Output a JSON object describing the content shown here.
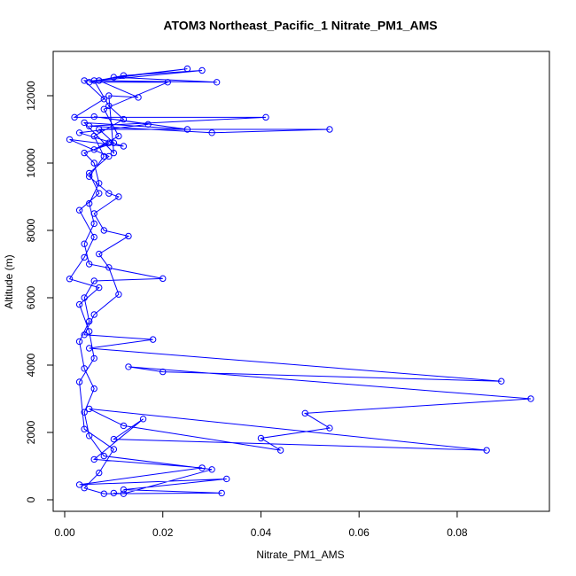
{
  "chart_data": {
    "type": "line",
    "title": "ATOM3 Northeast_Pacific_1 Nitrate_PM1_AMS",
    "xlabel": "Nitrate_PM1_AMS",
    "ylabel": "Altitude (m)",
    "color": "#0000ff",
    "marker": "circle",
    "xlim": [
      -0.00235,
      0.0988
    ],
    "ylim": [
      -342,
      13316
    ],
    "xticks": [
      {
        "value": 0,
        "label": "0.00"
      },
      {
        "value": 0.02,
        "label": "0.02"
      },
      {
        "value": 0.04,
        "label": "0.04"
      },
      {
        "value": 0.06,
        "label": "0.06"
      },
      {
        "value": 0.08,
        "label": "0.08"
      }
    ],
    "yticks": [
      0,
      2000,
      4000,
      6000,
      8000,
      10000,
      12000
    ],
    "x": [
      0.01,
      0.012,
      0.03,
      0.008,
      0.005,
      0.004,
      0.006,
      0.004,
      0.003,
      0.005,
      0.004,
      0.006,
      0.02,
      0.005,
      0.004,
      0.006,
      0.005,
      0.007,
      0.006,
      0.004,
      0.01,
      0.007,
      0.054,
      0.03,
      0.005,
      0.041,
      0.002,
      0.008,
      0.004,
      0.031,
      0.01,
      0.025,
      0.006,
      0.009,
      0.012,
      0.006,
      0.008,
      0.005,
      0.009,
      0.011,
      0.006,
      0.008,
      0.013,
      0.007,
      0.009,
      0.011,
      0.006,
      0.004,
      0.018,
      0.005,
      0.089,
      0.02,
      0.013,
      0.095,
      0.049,
      0.054,
      0.04,
      0.044,
      0.012,
      0.005,
      0.086,
      0.01,
      0.016,
      0.006,
      0.028,
      0.003,
      0.033,
      0.012,
      0.032,
      0.008,
      0.004,
      0.007,
      0.01,
      0.004,
      0.003,
      0.006,
      0.005,
      0.003,
      0.007,
      0.001,
      0.004,
      0.006,
      0.003,
      0.007,
      0.005,
      0.009,
      0.001,
      0.012,
      0.003,
      0.017,
      0.006,
      0.025,
      0.004,
      0.01,
      0.009,
      0.015,
      0.007,
      0.028,
      0.012,
      0.005,
      0.021,
      0.008,
      0.011,
      0.006,
      0.009
    ],
    "values": [
      200,
      180,
      900,
      1300,
      1900,
      2600,
      3300,
      3900,
      4700,
      5300,
      6000,
      6500,
      6570,
      7000,
      7600,
      8200,
      8800,
      9400,
      10000,
      10300,
      10600,
      11000,
      11000,
      10900,
      11100,
      11360,
      11360,
      11900,
      12450,
      12400,
      12550,
      12800,
      12450,
      11700,
      11300,
      10800,
      10200,
      9600,
      9100,
      9000,
      8500,
      8000,
      7830,
      7300,
      6900,
      6100,
      5500,
      4900,
      4760,
      4500,
      3520,
      3800,
      3950,
      3000,
      2570,
      2130,
      1830,
      1470,
      2200,
      2700,
      1470,
      1800,
      2400,
      1200,
      950,
      450,
      620,
      300,
      200,
      180,
      350,
      800,
      1500,
      2100,
      3500,
      4200,
      5000,
      5800,
      6300,
      6560,
      7200,
      7800,
      8600,
      9100,
      9700,
      10200,
      10700,
      10500,
      10900,
      11150,
      11380,
      11000,
      11200,
      10300,
      12000,
      11950,
      12450,
      12750,
      12600,
      12400,
      12400,
      11600,
      10800,
      10400,
      10600
    ]
  }
}
